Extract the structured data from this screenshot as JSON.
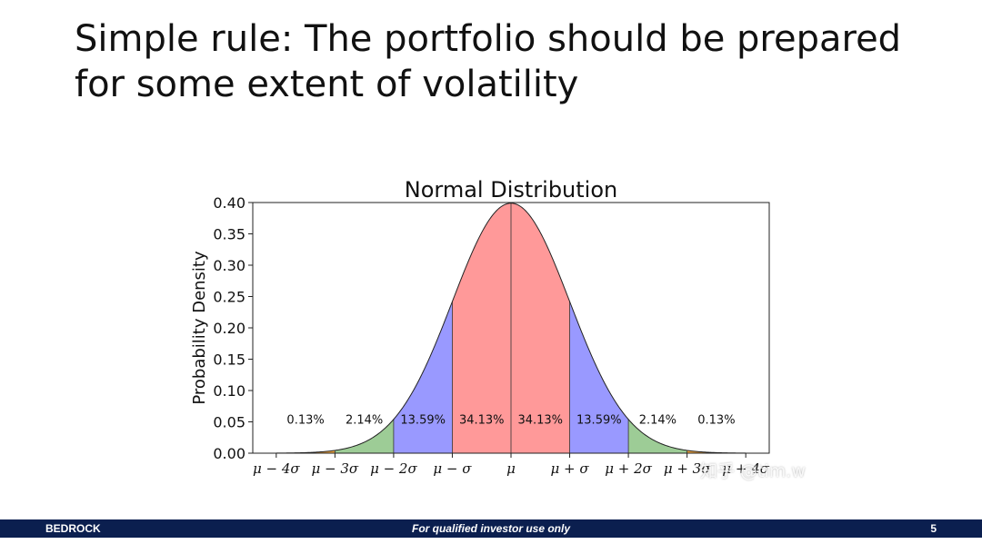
{
  "slide": {
    "title_lines": [
      "Simple rule: The portfolio should be prepared",
      "for some extent of volatility"
    ]
  },
  "chart_data": {
    "type": "area",
    "title": "Normal Distribution",
    "xlabel": "",
    "ylabel": "Probability Density",
    "xlim": [
      -4.4,
      4.4
    ],
    "ylim": [
      0,
      0.4
    ],
    "yticks": [
      "0.00",
      "0.05",
      "0.10",
      "0.15",
      "0.20",
      "0.25",
      "0.30",
      "0.35",
      "0.40"
    ],
    "xticks": [
      "μ − 4σ",
      "μ − 3σ",
      "μ − 2σ",
      "μ − σ",
      "μ",
      "μ + σ",
      "μ + 2σ",
      "μ + 3σ",
      "μ + 4σ"
    ],
    "curve": "standard normal density",
    "bands": [
      {
        "from": -4,
        "to": -3,
        "percent": "0.13%",
        "color": "#f2a640"
      },
      {
        "from": -3,
        "to": -2,
        "percent": "2.14%",
        "color": "#9dcc96"
      },
      {
        "from": -2,
        "to": -1,
        "percent": "13.59%",
        "color": "#9999ff"
      },
      {
        "from": -1,
        "to": 0,
        "percent": "34.13%",
        "color": "#ff9999"
      },
      {
        "from": 0,
        "to": 1,
        "percent": "34.13%",
        "color": "#ff9999"
      },
      {
        "from": 1,
        "to": 2,
        "percent": "13.59%",
        "color": "#9999ff"
      },
      {
        "from": 2,
        "to": 3,
        "percent": "2.14%",
        "color": "#9dcc96"
      },
      {
        "from": 3,
        "to": 4,
        "percent": "0.13%",
        "color": "#f2a640"
      }
    ],
    "grid": false
  },
  "footer": {
    "left": "BEDROCK",
    "center": "For qualified investor use only",
    "page": "5"
  },
  "watermark": "知乎 @tim.w"
}
